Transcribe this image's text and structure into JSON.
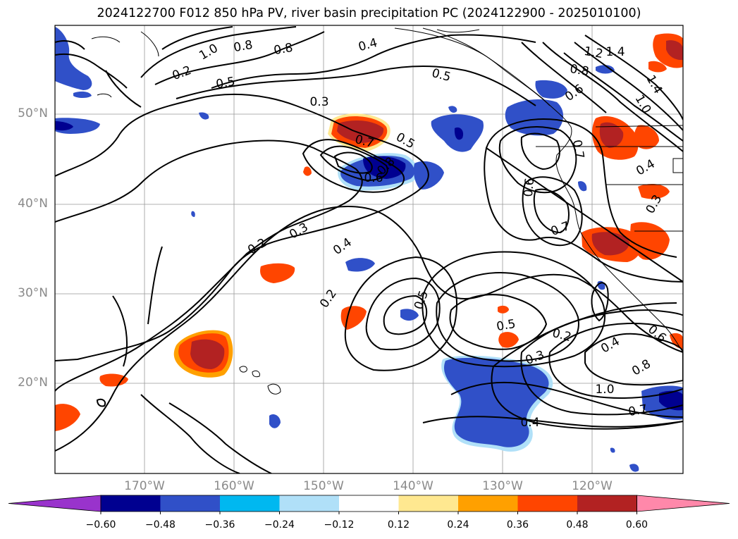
{
  "title": "2024122700 F012 850 hPa PV, river basin precipitation PC (2024122900 - 2025010100)",
  "lat_labels": [
    "50°N",
    "40°N",
    "30°N",
    "20°N"
  ],
  "lon_labels": [
    "170°W",
    "160°W",
    "150°W",
    "140°W",
    "130°W",
    "120°W"
  ],
  "colorbar": {
    "ticks": [
      "−0.60",
      "−0.48",
      "−0.36",
      "−0.24",
      "−0.12",
      "0.12",
      "0.24",
      "0.36",
      "0.48",
      "0.60"
    ],
    "colors": [
      "#9933cc",
      "#000090",
      "#3050c8",
      "#00b8f0",
      "#b0e0f8",
      "#ffffff",
      "#ffe890",
      "#ffa000",
      "#ff4500",
      "#b22222",
      "#ff88aa"
    ]
  },
  "contour_labels": [
    "1.0",
    "0.8",
    "0.8",
    "0.4",
    "1.2",
    "1.4",
    "0.5",
    "0.5",
    "0.8",
    "0.6",
    "1.4",
    "1.0",
    "0.3",
    "0.7",
    "0.5",
    "0.8",
    "0.6",
    "0.7",
    "0.6",
    "0.4",
    "0.3",
    "0.7",
    "0.2",
    "0.3",
    "0.4",
    "0.5",
    "0.2",
    "0.5",
    "0.2",
    "0.3",
    "0.4",
    "0.6",
    "0.8",
    "1.0",
    "0.7",
    "0.4",
    "0.2"
  ]
}
